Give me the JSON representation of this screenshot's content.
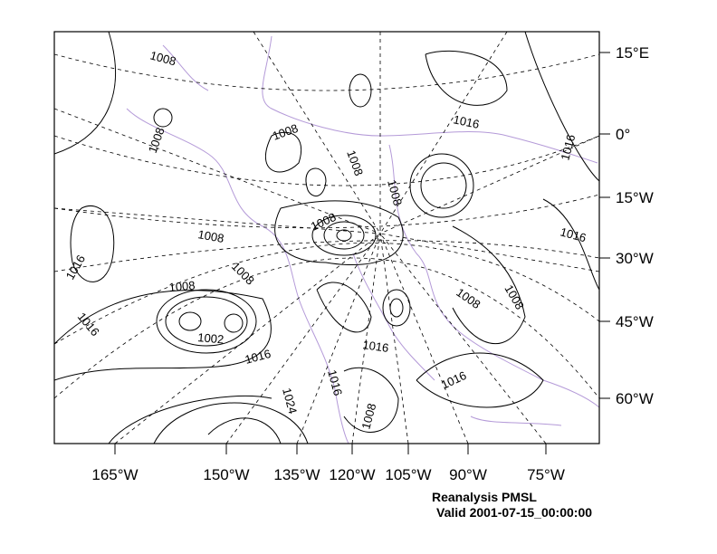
{
  "title": "Reanalysis PMSL",
  "valid": "Valid 2001-07-15_00:00:00",
  "lat_labels": [
    "15°E",
    "0°",
    "15°W",
    "30°W",
    "45°W",
    "60°W"
  ],
  "lon_labels": [
    "165°W",
    "150°W",
    "135°W",
    "120°W",
    "105°W",
    "90°W",
    "75°W"
  ],
  "contour_labels": [
    "1008",
    "1008",
    "1008",
    "1016",
    "1008",
    "1016",
    "1016",
    "1008",
    "1008",
    "1016",
    "1008",
    "1008",
    "1008",
    "1002",
    "1016",
    "1008",
    "1008",
    "1016",
    "1016",
    "1024",
    "1016",
    "1008",
    "1016"
  ],
  "colors": {
    "contour": "#000000",
    "coast": "#b49ad8",
    "grid": "#000000"
  }
}
